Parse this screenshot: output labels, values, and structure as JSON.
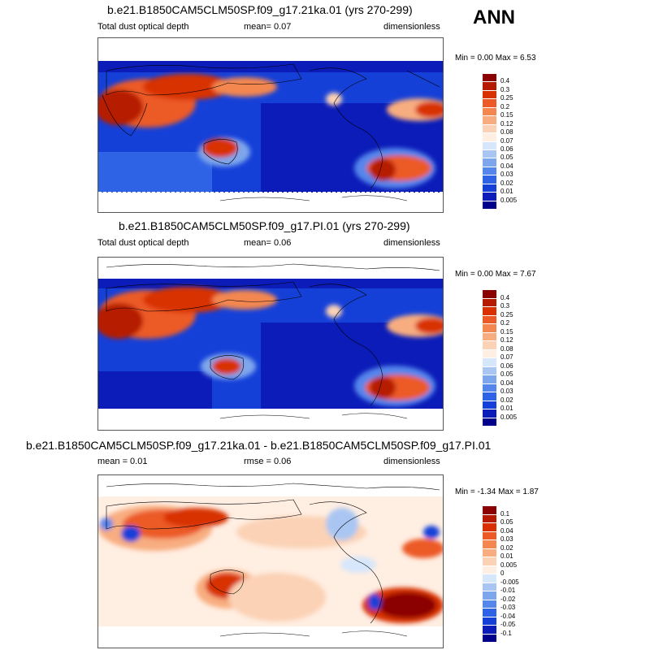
{
  "season": "ANN",
  "panels": [
    {
      "title": "b.e21.B1850CAM5CLM50SP.f09_g17.21ka.01 (yrs 270-299)",
      "left_label": "Total dust optical depth",
      "center_label": "mean=   0.07",
      "right_label": "dimensionless",
      "minmax": "Min =   0.00 Max =   6.53",
      "colorbar_labels": [
        "0.4",
        "0.3",
        "0.25",
        "0.2",
        "0.15",
        "0.12",
        "0.08",
        "0.07",
        "0.06",
        "0.05",
        "0.04",
        "0.03",
        "0.02",
        "0.01",
        "0.005"
      ],
      "colors": [
        "#8b0000",
        "#b51a00",
        "#d83000",
        "#ec5a28",
        "#f4874f",
        "#f8ad80",
        "#fbd2b5",
        "#ffeee2",
        "#d6e6fb",
        "#a9c6f2",
        "#7ea6ec",
        "#5586ec",
        "#2f63e6",
        "#1540d8",
        "#0b1cb8",
        "#00008b"
      ]
    },
    {
      "title": "b.e21.B1850CAM5CLM50SP.f09_g17.PI.01 (yrs 270-299)",
      "left_label": "Total dust optical depth",
      "center_label": "mean=   0.06",
      "right_label": "dimensionless",
      "minmax": "Min =   0.00 Max =   7.67",
      "colorbar_labels": [
        "0.4",
        "0.3",
        "0.25",
        "0.2",
        "0.15",
        "0.12",
        "0.08",
        "0.07",
        "0.06",
        "0.05",
        "0.04",
        "0.03",
        "0.02",
        "0.01",
        "0.005"
      ],
      "colors": [
        "#8b0000",
        "#b51a00",
        "#d83000",
        "#ec5a28",
        "#f4874f",
        "#f8ad80",
        "#fbd2b5",
        "#ffeee2",
        "#d6e6fb",
        "#a9c6f2",
        "#7ea6ec",
        "#5586ec",
        "#2f63e6",
        "#1540d8",
        "#0b1cb8",
        "#00008b"
      ]
    },
    {
      "title": "b.e21.B1850CAM5CLM50SP.f09_g17.21ka.01 - b.e21.B1850CAM5CLM50SP.f09_g17.PI.01",
      "left_label": "mean =   0.01",
      "center_label": "rmse =   0.06",
      "right_label": "dimensionless",
      "minmax": "Min =  -1.34 Max =   1.87",
      "colorbar_labels": [
        "0.1",
        "0.05",
        "0.04",
        "0.03",
        "0.02",
        "0.01",
        "0.005",
        "0",
        "-0.005",
        "-0.01",
        "-0.02",
        "-0.03",
        "-0.04",
        "-0.05",
        "-0.1"
      ],
      "colors": [
        "#8b0000",
        "#b51a00",
        "#d83000",
        "#ec5a28",
        "#f4874f",
        "#f8ad80",
        "#fbd2b5",
        "#ffeee2",
        "#d6e6fb",
        "#a9c6f2",
        "#7ea6ec",
        "#5586ec",
        "#2f63e6",
        "#1540d8",
        "#0b1cb8",
        "#00008b"
      ]
    }
  ]
}
